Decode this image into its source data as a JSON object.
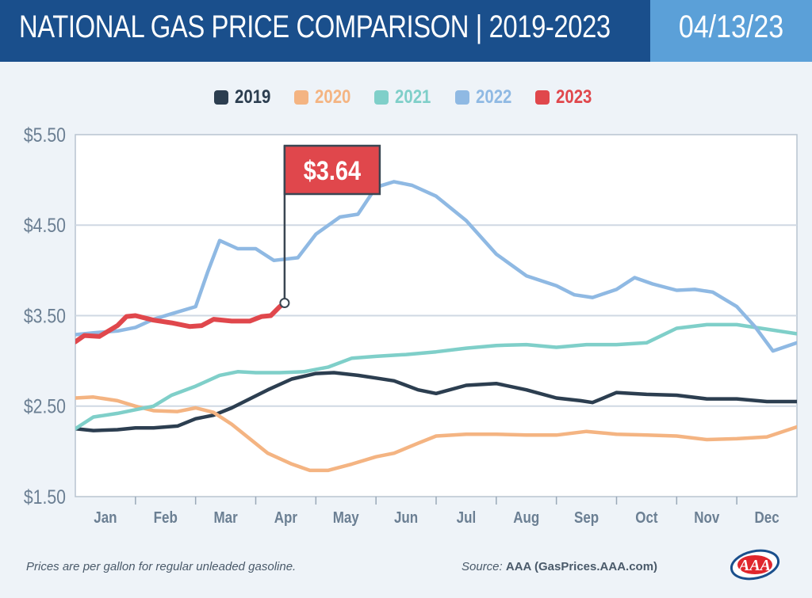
{
  "header": {
    "title": "NATIONAL GAS PRICE COMPARISON | 2019-2023",
    "date": "04/13/23"
  },
  "colors": {
    "header_bg": "#1a4f8c",
    "date_bg": "#5ba0d8",
    "grid": "#cfd8e3",
    "axis_text": "#6b7f93"
  },
  "chart_data": {
    "type": "line",
    "title": "NATIONAL GAS PRICE COMPARISON | 2019-2023",
    "xlabel": "",
    "ylabel": "",
    "x_domain": [
      0,
      12
    ],
    "ylim": [
      1.5,
      5.5
    ],
    "y_ticks": [
      1.5,
      2.5,
      3.5,
      4.5,
      5.5
    ],
    "y_tick_labels": [
      "$1.50",
      "$2.50",
      "$3.50",
      "$4.50",
      "$5.50"
    ],
    "months": [
      "Jan",
      "Feb",
      "Mar",
      "Apr",
      "May",
      "Jun",
      "Jul",
      "Aug",
      "Sep",
      "Oct",
      "Nov",
      "Dec"
    ],
    "grid": true,
    "legend_position": "top-center",
    "series": [
      {
        "name": "2019",
        "color": "#2c3e50",
        "x": [
          0,
          0.3,
          0.7,
          1.0,
          1.3,
          1.7,
          2.0,
          2.3,
          2.6,
          2.9,
          3.2,
          3.6,
          4.0,
          4.3,
          4.7,
          5.0,
          5.3,
          5.7,
          6.0,
          6.5,
          7.0,
          7.5,
          8.0,
          8.4,
          8.6,
          9.0,
          9.5,
          10.0,
          10.5,
          11.0,
          11.5,
          12.0
        ],
        "y": [
          2.25,
          2.23,
          2.24,
          2.26,
          2.26,
          2.28,
          2.36,
          2.4,
          2.48,
          2.58,
          2.68,
          2.8,
          2.86,
          2.87,
          2.84,
          2.81,
          2.78,
          2.68,
          2.64,
          2.73,
          2.75,
          2.68,
          2.59,
          2.56,
          2.54,
          2.65,
          2.63,
          2.62,
          2.58,
          2.58,
          2.55,
          2.55
        ]
      },
      {
        "name": "2020",
        "color": "#f4b482",
        "x": [
          0,
          0.3,
          0.7,
          1.0,
          1.3,
          1.7,
          2.0,
          2.3,
          2.6,
          2.9,
          3.2,
          3.6,
          3.9,
          4.2,
          4.6,
          5.0,
          5.3,
          5.7,
          6.0,
          6.5,
          7.0,
          7.5,
          8.0,
          8.5,
          9.0,
          9.5,
          10.0,
          10.5,
          11.0,
          11.5,
          12.0
        ],
        "y": [
          2.59,
          2.6,
          2.56,
          2.5,
          2.45,
          2.44,
          2.48,
          2.43,
          2.3,
          2.14,
          1.98,
          1.86,
          1.79,
          1.79,
          1.86,
          1.94,
          1.98,
          2.09,
          2.17,
          2.19,
          2.19,
          2.18,
          2.18,
          2.22,
          2.19,
          2.18,
          2.17,
          2.13,
          2.14,
          2.16,
          2.27
        ]
      },
      {
        "name": "2021",
        "color": "#7fcfc9",
        "x": [
          0,
          0.3,
          0.7,
          1.0,
          1.3,
          1.6,
          2.0,
          2.4,
          2.7,
          3.0,
          3.4,
          3.8,
          4.2,
          4.6,
          5.0,
          5.5,
          6.0,
          6.5,
          7.0,
          7.5,
          8.0,
          8.5,
          9.0,
          9.5,
          10.0,
          10.5,
          11.0,
          11.5,
          12.0
        ],
        "y": [
          2.25,
          2.38,
          2.42,
          2.46,
          2.5,
          2.62,
          2.72,
          2.84,
          2.88,
          2.87,
          2.87,
          2.88,
          2.93,
          3.03,
          3.05,
          3.07,
          3.1,
          3.14,
          3.17,
          3.18,
          3.15,
          3.18,
          3.18,
          3.2,
          3.36,
          3.4,
          3.4,
          3.35,
          3.3
        ]
      },
      {
        "name": "2022",
        "color": "#8fb9e3",
        "x": [
          0,
          0.3,
          0.7,
          1.0,
          1.3,
          1.6,
          2.0,
          2.2,
          2.4,
          2.7,
          3.0,
          3.3,
          3.7,
          4.0,
          4.4,
          4.7,
          5.0,
          5.3,
          5.6,
          6.0,
          6.5,
          7.0,
          7.5,
          8.0,
          8.3,
          8.6,
          9.0,
          9.3,
          9.6,
          10.0,
          10.3,
          10.6,
          11.0,
          11.3,
          11.6,
          12.0
        ],
        "y": [
          3.29,
          3.31,
          3.33,
          3.37,
          3.46,
          3.52,
          3.6,
          3.98,
          4.33,
          4.24,
          4.24,
          4.11,
          4.14,
          4.4,
          4.59,
          4.62,
          4.92,
          4.98,
          4.94,
          4.82,
          4.55,
          4.18,
          3.94,
          3.83,
          3.73,
          3.7,
          3.79,
          3.92,
          3.85,
          3.78,
          3.79,
          3.76,
          3.6,
          3.38,
          3.11,
          3.2
        ]
      },
      {
        "name": "2023",
        "color": "#e0474c",
        "x": [
          0,
          0.15,
          0.4,
          0.7,
          0.85,
          1.0,
          1.3,
          1.6,
          1.9,
          2.1,
          2.3,
          2.6,
          2.9,
          3.1,
          3.25,
          3.4,
          3.48
        ],
        "y": [
          3.21,
          3.28,
          3.27,
          3.39,
          3.49,
          3.5,
          3.45,
          3.42,
          3.38,
          3.39,
          3.46,
          3.44,
          3.44,
          3.49,
          3.5,
          3.6,
          3.64
        ]
      }
    ],
    "annotation": {
      "label": "$3.64",
      "x": 3.48,
      "y": 3.64
    }
  },
  "footer": {
    "note": "Prices are per gallon for regular unleaded gasoline.",
    "source_label": "Source:",
    "source_name": "AAA (GasPrices.AAA.com)",
    "logo_text": "AAA"
  }
}
